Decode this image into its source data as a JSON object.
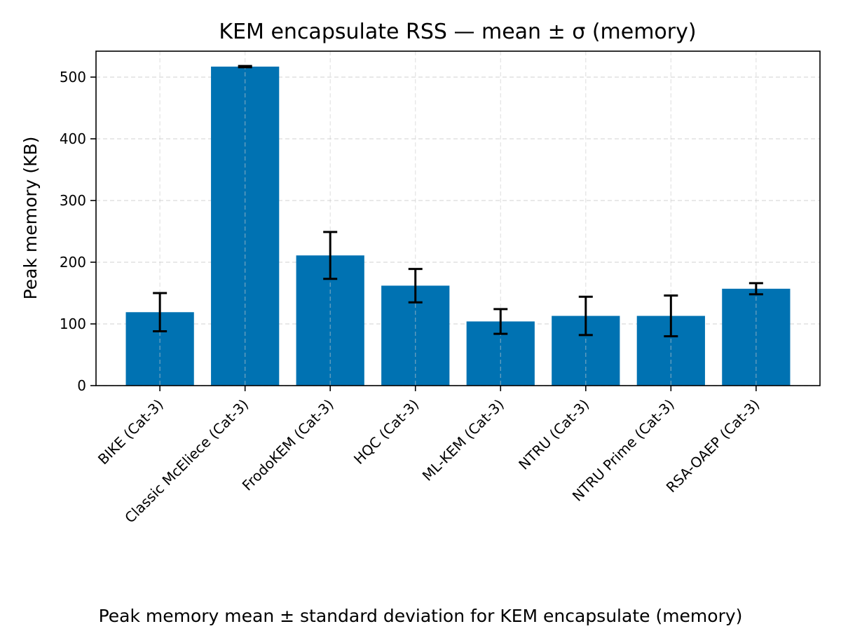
{
  "chart_data": {
    "type": "bar",
    "title": "KEM encapsulate RSS — mean ± σ (memory)",
    "xlabel": "",
    "ylabel": "Peak memory (KB)",
    "categories": [
      "BIKE (Cat-3)",
      "Classic McEliece (Cat-3)",
      "FrodoKEM (Cat-3)",
      "HQC (Cat-3)",
      "ML-KEM (Cat-3)",
      "NTRU (Cat-3)",
      "NTRU Prime (Cat-3)",
      "RSA-OAEP (Cat-3)"
    ],
    "values": [
      119,
      517,
      211,
      162,
      104,
      113,
      113,
      157
    ],
    "errors": [
      31,
      1,
      38,
      27,
      20,
      31,
      33,
      9
    ],
    "ylim": [
      0,
      542
    ],
    "yticks": [
      0,
      100,
      200,
      300,
      400,
      500
    ],
    "grid": true,
    "bar_color": "#0072b2",
    "error_color": "#000000"
  },
  "caption": "Peak memory mean ± standard deviation for KEM encapsulate (memory)"
}
